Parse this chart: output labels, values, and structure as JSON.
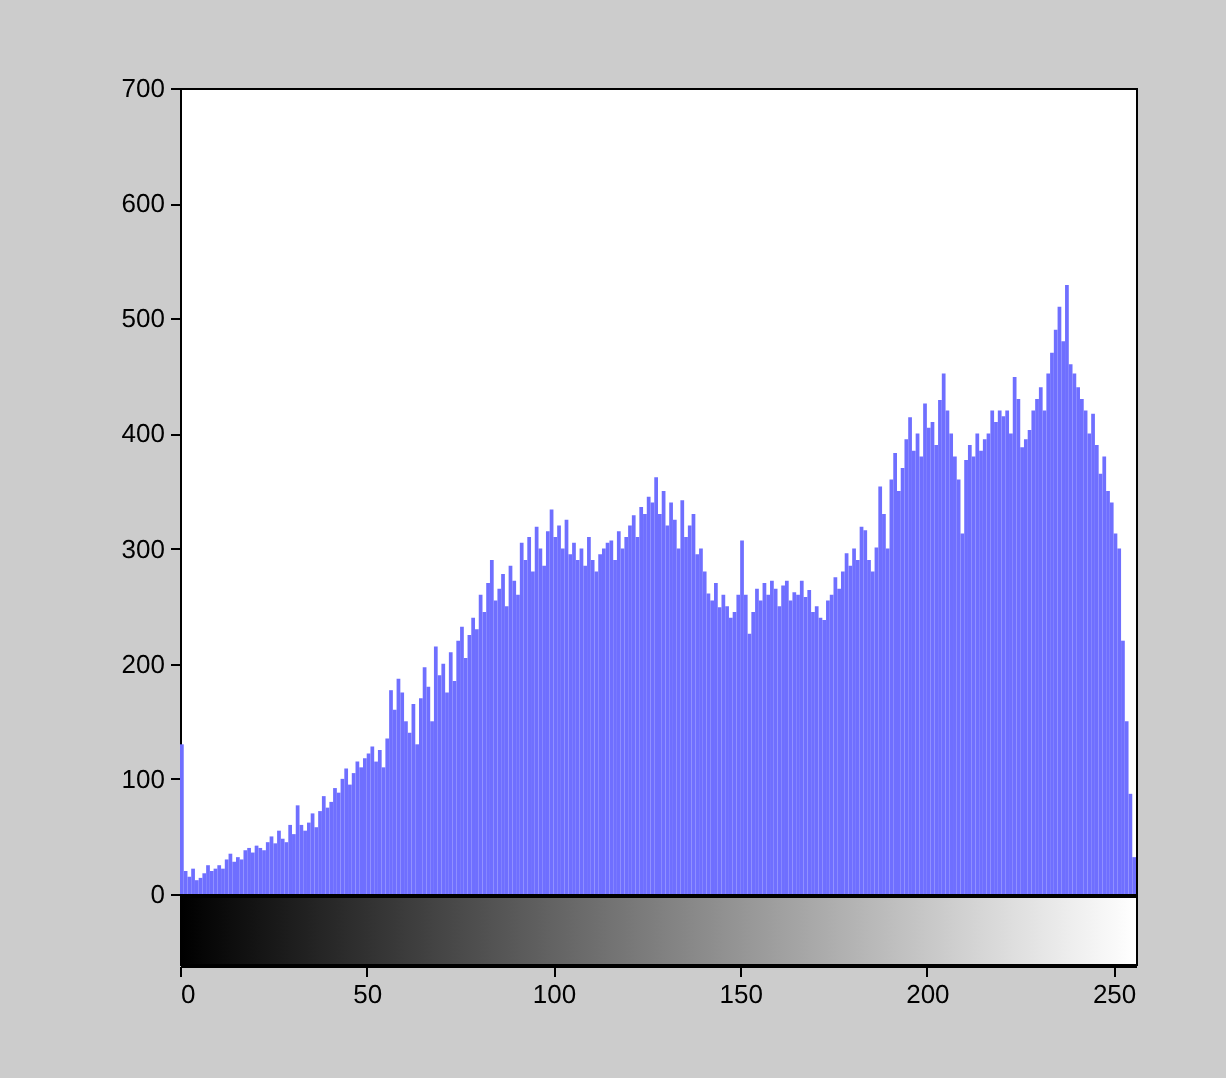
{
  "chart_data": {
    "type": "histogram",
    "bins": [
      0,
      1,
      2,
      3,
      4,
      5,
      6,
      7,
      8,
      9,
      10,
      11,
      12,
      13,
      14,
      15,
      16,
      17,
      18,
      19,
      20,
      21,
      22,
      23,
      24,
      25,
      26,
      27,
      28,
      29,
      30,
      31,
      32,
      33,
      34,
      35,
      36,
      37,
      38,
      39,
      40,
      41,
      42,
      43,
      44,
      45,
      46,
      47,
      48,
      49,
      50,
      51,
      52,
      53,
      54,
      55,
      56,
      57,
      58,
      59,
      60,
      61,
      62,
      63,
      64,
      65,
      66,
      67,
      68,
      69,
      70,
      71,
      72,
      73,
      74,
      75,
      76,
      77,
      78,
      79,
      80,
      81,
      82,
      83,
      84,
      85,
      86,
      87,
      88,
      89,
      90,
      91,
      92,
      93,
      94,
      95,
      96,
      97,
      98,
      99,
      100,
      101,
      102,
      103,
      104,
      105,
      106,
      107,
      108,
      109,
      110,
      111,
      112,
      113,
      114,
      115,
      116,
      117,
      118,
      119,
      120,
      121,
      122,
      123,
      124,
      125,
      126,
      127,
      128,
      129,
      130,
      131,
      132,
      133,
      134,
      135,
      136,
      137,
      138,
      139,
      140,
      141,
      142,
      143,
      144,
      145,
      146,
      147,
      148,
      149,
      150,
      151,
      152,
      153,
      154,
      155,
      156,
      157,
      158,
      159,
      160,
      161,
      162,
      163,
      164,
      165,
      166,
      167,
      168,
      169,
      170,
      171,
      172,
      173,
      174,
      175,
      176,
      177,
      178,
      179,
      180,
      181,
      182,
      183,
      184,
      185,
      186,
      187,
      188,
      189,
      190,
      191,
      192,
      193,
      194,
      195,
      196,
      197,
      198,
      199,
      200,
      201,
      202,
      203,
      204,
      205,
      206,
      207,
      208,
      209,
      210,
      211,
      212,
      213,
      214,
      215,
      216,
      217,
      218,
      219,
      220,
      221,
      222,
      223,
      224,
      225,
      226,
      227,
      228,
      229,
      230,
      231,
      232,
      233,
      234,
      235,
      236,
      237,
      238,
      239,
      240,
      241,
      242,
      243,
      244,
      245,
      246,
      247,
      248,
      249,
      250,
      251,
      252,
      253,
      254,
      255,
      256
    ],
    "values": [
      130,
      20,
      15,
      22,
      12,
      14,
      18,
      25,
      20,
      22,
      25,
      22,
      30,
      35,
      28,
      32,
      30,
      38,
      40,
      36,
      42,
      40,
      38,
      45,
      50,
      44,
      55,
      48,
      45,
      60,
      52,
      77,
      60,
      55,
      62,
      70,
      58,
      72,
      85,
      75,
      80,
      92,
      88,
      100,
      109,
      95,
      105,
      115,
      110,
      118,
      122,
      128,
      115,
      125,
      110,
      135,
      177,
      160,
      187,
      175,
      150,
      140,
      165,
      130,
      170,
      197,
      180,
      150,
      215,
      190,
      200,
      175,
      210,
      185,
      220,
      232,
      205,
      225,
      240,
      230,
      260,
      245,
      270,
      290,
      255,
      265,
      278,
      250,
      285,
      272,
      260,
      305,
      290,
      310,
      280,
      319,
      300,
      285,
      315,
      334,
      310,
      320,
      300,
      325,
      295,
      305,
      290,
      300,
      285,
      310,
      290,
      280,
      295,
      300,
      305,
      307,
      290,
      315,
      300,
      310,
      320,
      329,
      310,
      336,
      330,
      345,
      340,
      362,
      330,
      350,
      320,
      340,
      325,
      300,
      342,
      310,
      320,
      330,
      295,
      300,
      280,
      261,
      255,
      270,
      249,
      260,
      250,
      240,
      245,
      260,
      307,
      260,
      226,
      245,
      265,
      255,
      270,
      260,
      272,
      265,
      250,
      268,
      272,
      255,
      262,
      260,
      272,
      258,
      264,
      245,
      250,
      240,
      238,
      255,
      260,
      275,
      265,
      280,
      296,
      285,
      300,
      290,
      319,
      316,
      290,
      280,
      301,
      354,
      330,
      300,
      360,
      383,
      350,
      370,
      395,
      414,
      385,
      400,
      380,
      426,
      405,
      410,
      390,
      429,
      452,
      420,
      400,
      380,
      360,
      313,
      377,
      390,
      380,
      400,
      385,
      395,
      400,
      420,
      410,
      420,
      415,
      420,
      400,
      449,
      430,
      388,
      395,
      403,
      420,
      430,
      440,
      420,
      452,
      470,
      490,
      510,
      480,
      529,
      460,
      452,
      440,
      430,
      420,
      400,
      417,
      390,
      365,
      380,
      350,
      340,
      313,
      300,
      220,
      150,
      87,
      32
    ],
    "color": "#6f6fff",
    "xlim": [
      0,
      256
    ],
    "xticks": [
      0,
      50,
      100,
      150,
      200,
      250
    ],
    "ylim": [
      0,
      700
    ],
    "yticks": [
      0,
      100,
      200,
      300,
      400,
      500,
      600,
      700
    ]
  }
}
